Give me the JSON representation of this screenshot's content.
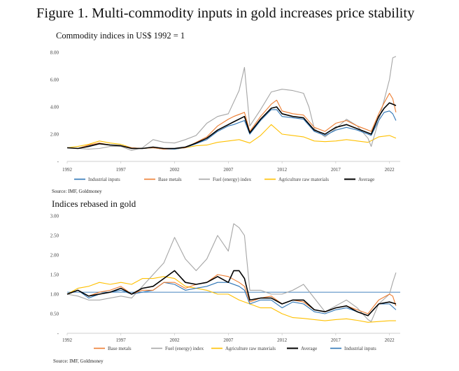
{
  "figure_title": "Figure 1. Multi-commodity inputs in gold increases price stability",
  "colors": {
    "industrial": "#2e75b6",
    "base": "#ed7d31",
    "fuel": "#a5a5a5",
    "agri": "#ffc000",
    "average": "#000000",
    "reference_line": "#2e75b6",
    "axis": "#bfbfbf",
    "text": "#404040"
  },
  "chart_data": [
    {
      "type": "line",
      "title": "Commodity indices in US$ 1992 = 1",
      "source": "Source: IMF, Goldmoney",
      "xlim": [
        1992,
        2023
      ],
      "ylim": [
        0,
        8
      ],
      "yticks": [
        0,
        2,
        4,
        6,
        8
      ],
      "ytick_labels": [
        "-",
        "2.00",
        "4.00",
        "6.00",
        "8.00"
      ],
      "xticks": [
        1992,
        1997,
        2002,
        2007,
        2012,
        2017,
        2022
      ],
      "xtick_labels": [
        "1992",
        "1997",
        "2002",
        "2007",
        "2012",
        "2017",
        "2022"
      ],
      "legend_position": "bottom",
      "legend_order": [
        "industrial",
        "base",
        "fuel",
        "agri",
        "average"
      ],
      "series": [
        {
          "key": "industrial",
          "name": "Industrial inputs",
          "x": [
            1992,
            1993,
            1994,
            1995,
            1996,
            1997,
            1998,
            1999,
            2000,
            2001,
            2002,
            2003,
            2004,
            2005,
            2006,
            2007,
            2007.5,
            2008.5,
            2009,
            2010,
            2011,
            2011.5,
            2012,
            2013,
            2014,
            2015,
            2016,
            2017,
            2018,
            2019,
            2020,
            2020.3,
            2021,
            2021.5,
            2022,
            2022.3,
            2022.6
          ],
          "y": [
            1.0,
            0.95,
            1.15,
            1.3,
            1.2,
            1.15,
            1.0,
            0.95,
            1.0,
            0.9,
            0.9,
            1.0,
            1.3,
            1.6,
            2.2,
            2.6,
            2.7,
            3.0,
            2.0,
            3.0,
            3.8,
            3.8,
            3.3,
            3.2,
            3.1,
            2.2,
            1.9,
            2.3,
            2.5,
            2.3,
            2.0,
            1.9,
            3.0,
            3.6,
            3.7,
            3.5,
            3.0
          ]
        },
        {
          "key": "base",
          "name": "Base metals",
          "x": [
            1992,
            1993,
            1994,
            1995,
            1996,
            1997,
            1998,
            1999,
            2000,
            2001,
            2002,
            2003,
            2004,
            2005,
            2006,
            2007,
            2007.5,
            2008.5,
            2009,
            2010,
            2011,
            2011.5,
            2012,
            2013,
            2014,
            2015,
            2016,
            2017,
            2018,
            2019,
            2020,
            2020.3,
            2021,
            2021.5,
            2022,
            2022.3,
            2022.6
          ],
          "y": [
            1.0,
            0.95,
            1.2,
            1.35,
            1.2,
            1.15,
            1.0,
            0.95,
            1.0,
            0.9,
            0.95,
            1.0,
            1.4,
            1.8,
            2.6,
            3.1,
            3.3,
            3.6,
            2.2,
            3.3,
            4.2,
            4.5,
            3.7,
            3.5,
            3.4,
            2.5,
            2.2,
            2.8,
            3.0,
            2.6,
            2.3,
            2.2,
            3.5,
            4.3,
            5.0,
            4.6,
            3.6
          ]
        },
        {
          "key": "fuel",
          "name": "Fuel (energy) index",
          "x": [
            1992,
            1993,
            1994,
            1995,
            1996,
            1997,
            1998,
            1999,
            2000,
            2001,
            2002,
            2003,
            2004,
            2005,
            2006,
            2007,
            2008,
            2008.5,
            2009,
            2010,
            2011,
            2012,
            2013,
            2014,
            2014.5,
            2015,
            2016,
            2017,
            2018,
            2019,
            2020,
            2020.3,
            2021,
            2021.5,
            2022,
            2022.3,
            2022.6
          ],
          "y": [
            1.0,
            0.95,
            0.9,
            0.95,
            1.1,
            1.1,
            0.8,
            1.0,
            1.6,
            1.4,
            1.35,
            1.6,
            1.9,
            2.8,
            3.3,
            3.5,
            5.2,
            6.9,
            2.6,
            3.8,
            5.1,
            5.3,
            5.2,
            5.0,
            4.0,
            2.4,
            1.8,
            2.4,
            3.1,
            2.6,
            1.7,
            1.1,
            3.0,
            4.5,
            6.0,
            7.6,
            7.7
          ]
        },
        {
          "key": "agri",
          "name": "Agriculture raw materials",
          "x": [
            1992,
            1993,
            1994,
            1995,
            1996,
            1997,
            1998,
            1999,
            2000,
            2001,
            2002,
            2003,
            2004,
            2005,
            2006,
            2007,
            2008,
            2009,
            2010,
            2011,
            2012,
            2013,
            2014,
            2015,
            2016,
            2017,
            2018,
            2019,
            2020,
            2021,
            2022,
            2022.6
          ],
          "y": [
            1.0,
            1.1,
            1.25,
            1.5,
            1.35,
            1.25,
            1.0,
            0.95,
            1.0,
            0.9,
            0.9,
            1.0,
            1.15,
            1.2,
            1.4,
            1.5,
            1.6,
            1.35,
            1.9,
            2.7,
            2.0,
            1.9,
            1.8,
            1.5,
            1.45,
            1.5,
            1.6,
            1.5,
            1.4,
            1.8,
            1.9,
            1.7
          ]
        },
        {
          "key": "average",
          "name": "Average",
          "x": [
            1992,
            1993,
            1994,
            1995,
            1996,
            1997,
            1998,
            1999,
            2000,
            2001,
            2002,
            2003,
            2004,
            2005,
            2006,
            2007,
            2007.5,
            2008.5,
            2009,
            2010,
            2011,
            2011.5,
            2012,
            2013,
            2014,
            2015,
            2016,
            2017,
            2018,
            2019,
            2020,
            2020.3,
            2021,
            2021.5,
            2022,
            2022.3,
            2022.6
          ],
          "y": [
            1.0,
            0.95,
            1.1,
            1.3,
            1.2,
            1.15,
            0.95,
            0.95,
            1.05,
            0.95,
            0.95,
            1.05,
            1.35,
            1.7,
            2.3,
            2.7,
            2.9,
            3.3,
            2.1,
            3.1,
            3.9,
            4.0,
            3.5,
            3.3,
            3.2,
            2.3,
            2.0,
            2.5,
            2.7,
            2.4,
            2.1,
            2.0,
            3.3,
            3.9,
            4.3,
            4.2,
            4.1
          ]
        }
      ]
    },
    {
      "type": "line",
      "title": "Indices rebased in gold",
      "source": "Source: IMF, Goldmoney",
      "xlim": [
        1992,
        2023
      ],
      "ylim": [
        0,
        3
      ],
      "yticks": [
        0,
        0.5,
        1.0,
        1.5,
        2.0,
        2.5,
        3.0
      ],
      "ytick_labels": [
        "-",
        "0.50",
        "1.00",
        "1.50",
        "2.00",
        "2.50",
        "3.00"
      ],
      "xticks": [
        1992,
        1997,
        2002,
        2007,
        2012,
        2017,
        2022
      ],
      "xtick_labels": [
        "1992",
        "1997",
        "2002",
        "2007",
        "2012",
        "2017",
        "2022"
      ],
      "reference_line_y": 1.05,
      "legend_position": "bottom",
      "legend_order": [
        "base",
        "fuel",
        "agri",
        "average",
        "industrial"
      ],
      "series": [
        {
          "key": "industrial",
          "name": "Industrial inputs",
          "x": [
            1992,
            1993,
            1994,
            1995,
            1996,
            1997,
            1998,
            1999,
            2000,
            2001,
            2002,
            2003,
            2004,
            2005,
            2006,
            2007,
            2008,
            2008.5,
            2009,
            2010,
            2011,
            2012,
            2013,
            2014,
            2015,
            2016,
            2017,
            2018,
            2019,
            2020,
            2021,
            2022,
            2022.6
          ],
          "y": [
            1.0,
            1.1,
            0.9,
            1.0,
            1.05,
            1.1,
            1.0,
            1.05,
            1.1,
            1.3,
            1.25,
            1.1,
            1.15,
            1.2,
            1.3,
            1.3,
            1.2,
            1.1,
            0.75,
            0.85,
            0.85,
            0.65,
            0.8,
            0.75,
            0.55,
            0.5,
            0.6,
            0.65,
            0.55,
            0.45,
            0.75,
            0.75,
            0.6
          ]
        },
        {
          "key": "base",
          "name": "Base metals",
          "x": [
            1992,
            1993,
            1994,
            1995,
            1996,
            1997,
            1998,
            1999,
            2000,
            2001,
            2002,
            2003,
            2004,
            2005,
            2006,
            2007,
            2008,
            2008.5,
            2009,
            2010,
            2011,
            2012,
            2013,
            2014,
            2015,
            2016,
            2017,
            2018,
            2019,
            2020,
            2021,
            2022,
            2022.3,
            2022.6
          ],
          "y": [
            1.0,
            1.1,
            0.95,
            1.05,
            1.1,
            1.2,
            1.0,
            1.1,
            1.1,
            1.3,
            1.3,
            1.15,
            1.25,
            1.3,
            1.5,
            1.45,
            1.3,
            1.2,
            0.8,
            0.9,
            0.95,
            0.75,
            0.85,
            0.8,
            0.6,
            0.55,
            0.65,
            0.7,
            0.6,
            0.5,
            0.85,
            1.0,
            0.95,
            0.7
          ]
        },
        {
          "key": "fuel",
          "name": "Fuel (energy) index",
          "x": [
            1992,
            1993,
            1994,
            1995,
            1996,
            1997,
            1998,
            1999,
            2000,
            2001,
            2002,
            2003,
            2004,
            2005,
            2006,
            2007,
            2007.5,
            2008,
            2008.5,
            2009,
            2010,
            2011,
            2012,
            2013,
            2014,
            2015,
            2016,
            2017,
            2018,
            2019,
            2020,
            2020.3,
            2021,
            2022,
            2022.3,
            2022.6
          ],
          "y": [
            1.0,
            0.95,
            0.85,
            0.85,
            0.9,
            0.95,
            0.9,
            1.2,
            1.5,
            1.8,
            2.45,
            1.9,
            1.6,
            1.9,
            2.5,
            2.1,
            2.8,
            2.7,
            2.5,
            1.1,
            1.1,
            1.0,
            1.0,
            1.1,
            1.25,
            0.9,
            0.55,
            0.7,
            0.85,
            0.65,
            0.35,
            0.3,
            0.75,
            1.0,
            1.3,
            1.55
          ]
        },
        {
          "key": "agri",
          "name": "Agriculture raw materials",
          "x": [
            1992,
            1993,
            1994,
            1995,
            1996,
            1997,
            1998,
            1999,
            2000,
            2001,
            2002,
            2003,
            2004,
            2005,
            2006,
            2007,
            2008,
            2009,
            2010,
            2011,
            2012,
            2013,
            2014,
            2015,
            2016,
            2017,
            2018,
            2019,
            2020,
            2021,
            2022,
            2022.6
          ],
          "y": [
            1.0,
            1.15,
            1.2,
            1.3,
            1.25,
            1.3,
            1.25,
            1.4,
            1.4,
            1.45,
            1.4,
            1.2,
            1.15,
            1.1,
            1.0,
            1.0,
            0.85,
            0.75,
            0.65,
            0.65,
            0.5,
            0.4,
            0.38,
            0.35,
            0.32,
            0.35,
            0.37,
            0.33,
            0.28,
            0.3,
            0.32,
            0.32
          ]
        },
        {
          "key": "average",
          "name": "Average",
          "x": [
            1992,
            1993,
            1994,
            1995,
            1996,
            1997,
            1998,
            1999,
            2000,
            2001,
            2002,
            2003,
            2004,
            2005,
            2006,
            2007,
            2007.5,
            2008,
            2008.5,
            2009,
            2010,
            2011,
            2012,
            2013,
            2014,
            2015,
            2016,
            2017,
            2018,
            2019,
            2020,
            2021,
            2022,
            2022.6
          ],
          "y": [
            1.0,
            1.1,
            0.95,
            1.0,
            1.05,
            1.15,
            1.0,
            1.15,
            1.2,
            1.4,
            1.6,
            1.3,
            1.25,
            1.3,
            1.45,
            1.3,
            1.6,
            1.6,
            1.4,
            0.85,
            0.9,
            0.9,
            0.75,
            0.85,
            0.85,
            0.6,
            0.55,
            0.65,
            0.7,
            0.55,
            0.45,
            0.75,
            0.8,
            0.75
          ]
        }
      ]
    }
  ]
}
